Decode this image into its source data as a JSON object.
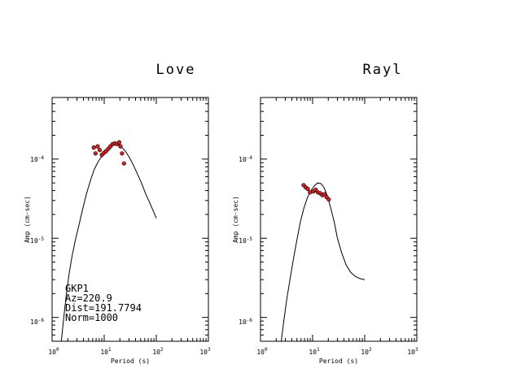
{
  "chart_data": [
    {
      "type": "scatter",
      "title": "Love",
      "xlabel": "Period (s)",
      "ylabel": "Amp (cm-sec)",
      "x_scale": "log",
      "y_scale": "log",
      "xlim": [
        1,
        1000
      ],
      "ylim": [
        5e-07,
        0.0006
      ],
      "x_ticks": [
        {
          "value": 1,
          "base": "10",
          "exp": "0"
        },
        {
          "value": 10,
          "base": "10",
          "exp": "1"
        },
        {
          "value": 100,
          "base": "10",
          "exp": "2"
        },
        {
          "value": 1000,
          "base": "10",
          "exp": "3"
        }
      ],
      "y_ticks": [
        {
          "value": 1e-06,
          "base": "10",
          "exp": "-6"
        },
        {
          "value": 1e-05,
          "base": "10",
          "exp": "-5"
        },
        {
          "value": 0.0001,
          "base": "10",
          "exp": "-4"
        }
      ],
      "series": [
        {
          "kind": "line",
          "x": [
            1.5,
            1.65,
            1.85,
            2.1,
            2.4,
            2.8,
            3.3,
            3.9,
            4.6,
            5.5,
            6.5,
            7.8,
            9.2,
            11,
            13,
            15.5,
            18,
            21,
            25,
            30,
            36,
            43,
            52,
            62,
            75,
            88,
            100
          ],
          "y": [
            5e-07,
            9e-07,
            1.8e-06,
            3.4e-06,
            5.8e-06,
            9.5e-06,
            1.5e-05,
            2.4e-05,
            3.7e-05,
            5.5e-05,
            7.5e-05,
            9.5e-05,
            0.00011,
            0.000125,
            0.00014,
            0.000152,
            0.000153,
            0.000145,
            0.000128,
            0.000107,
            8.5e-05,
            6.6e-05,
            5e-05,
            3.7e-05,
            2.8e-05,
            2.2e-05,
            1.8e-05
          ],
          "color": "#000000"
        },
        {
          "kind": "points",
          "x": [
            6.3,
            6.8,
            7.5,
            8.2,
            9.0,
            9.9,
            10.9,
            12.0,
            13.2,
            14.5,
            16.0,
            17.6,
            19.4,
            20.5,
            22.0,
            24.0
          ],
          "y": [
            0.00014,
            0.000118,
            0.000145,
            0.00013,
            0.000113,
            0.00012,
            0.000126,
            0.000135,
            0.000145,
            0.000155,
            0.000158,
            0.000155,
            0.000163,
            0.000145,
            0.000118,
            8.8e-05
          ],
          "color": "#d81e1e"
        }
      ],
      "annotation": [
        "GKP1",
        "Az=220.9",
        "Dist=191.7794",
        "Norm=1000"
      ]
    },
    {
      "type": "scatter",
      "title": "Rayl",
      "xlabel": "Period (s)",
      "ylabel": "Amp (cm-sec)",
      "x_scale": "log",
      "y_scale": "log",
      "xlim": [
        1,
        1000
      ],
      "ylim": [
        5e-07,
        0.0006
      ],
      "x_ticks": [
        {
          "value": 1,
          "base": "10",
          "exp": "0"
        },
        {
          "value": 10,
          "base": "10",
          "exp": "1"
        },
        {
          "value": 100,
          "base": "10",
          "exp": "2"
        },
        {
          "value": 1000,
          "base": "10",
          "exp": "3"
        }
      ],
      "y_ticks": [
        {
          "value": 1e-06,
          "base": "10",
          "exp": "-6"
        },
        {
          "value": 1e-05,
          "base": "10",
          "exp": "-5"
        },
        {
          "value": 0.0001,
          "base": "10",
          "exp": "-4"
        }
      ],
      "series": [
        {
          "kind": "line",
          "x": [
            2.5,
            2.8,
            3.2,
            3.7,
            4.3,
            5.0,
            5.8,
            6.8,
            8.0,
            9.3,
            10.8,
            12.5,
            14.5,
            16.5,
            19,
            22,
            26,
            30,
            36,
            44,
            54,
            66,
            80,
            100
          ],
          "y": [
            5e-07,
            9e-07,
            1.7e-06,
            3.1e-06,
            5.5e-06,
            9.5e-06,
            1.6e-05,
            2.4e-05,
            3.3e-05,
            4e-05,
            4.6e-05,
            5e-05,
            4.9e-05,
            4.4e-05,
            3.5e-05,
            2.5e-05,
            1.6e-05,
            1e-05,
            6.6e-06,
            4.6e-06,
            3.7e-06,
            3.3e-06,
            3.1e-06,
            3e-06
          ],
          "color": "#000000"
        },
        {
          "kind": "points",
          "x": [
            6.7,
            7.4,
            8.1,
            8.9,
            10.4,
            11.5,
            12.7,
            14.0,
            15.4,
            16.9,
            18.6,
            20.4
          ],
          "y": [
            4.7e-05,
            4.4e-05,
            4.2e-05,
            3.8e-05,
            3.9e-05,
            4.1e-05,
            3.8e-05,
            3.7e-05,
            3.5e-05,
            3.6e-05,
            3.3e-05,
            3.1e-05
          ],
          "color": "#d81e1e"
        }
      ]
    }
  ]
}
